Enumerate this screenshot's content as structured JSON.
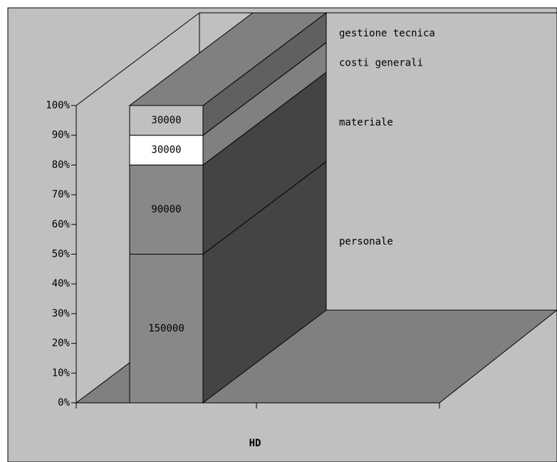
{
  "chart_data": {
    "type": "bar",
    "stacking": "percent",
    "depth3d": true,
    "categories": [
      "HD"
    ],
    "series": [
      {
        "name": "personale",
        "color": "#888888",
        "values": [
          150000
        ]
      },
      {
        "name": "materiale",
        "color": "#888888",
        "values": [
          90000
        ]
      },
      {
        "name": "costi generali",
        "color": "#ffffff",
        "values": [
          30000
        ]
      },
      {
        "name": "gestione tecnica",
        "color": "#c0c0c0",
        "values": [
          30000
        ]
      }
    ],
    "ylim": [
      0,
      100
    ],
    "yticks": [
      {
        "value": 0,
        "label": "0%"
      },
      {
        "value": 10,
        "label": "10%"
      },
      {
        "value": 20,
        "label": "20%"
      },
      {
        "value": 30,
        "label": "30%"
      },
      {
        "value": 40,
        "label": "40%"
      },
      {
        "value": 50,
        "label": "50%"
      },
      {
        "value": 60,
        "label": "60%"
      },
      {
        "value": 70,
        "label": "70%"
      },
      {
        "value": 80,
        "label": "80%"
      },
      {
        "value": 90,
        "label": "90%"
      },
      {
        "value": 100,
        "label": "100%"
      }
    ]
  }
}
